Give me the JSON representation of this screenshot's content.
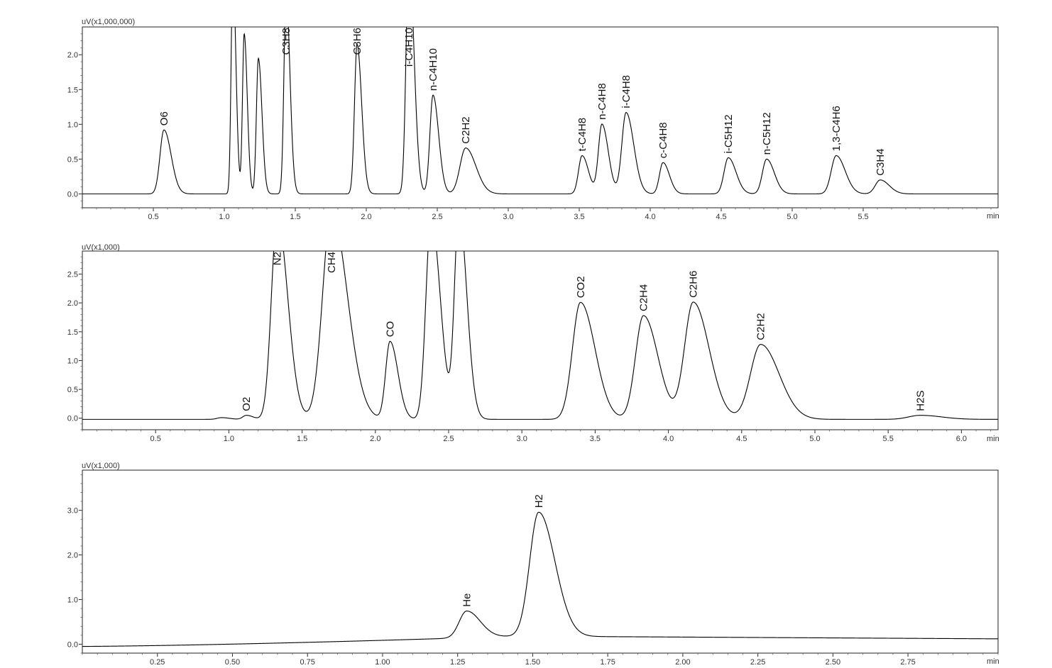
{
  "chart_data": [
    {
      "type": "line",
      "y_unit_label": "uV(x1,000,000)",
      "x_unit_label": "min",
      "xlim": [
        0.0,
        6.45
      ],
      "ylim": [
        -0.2,
        2.4
      ],
      "x_ticks": [
        "0.5",
        "1.0",
        "1.5",
        "2.0",
        "2.5",
        "3.0",
        "3.5",
        "4.0",
        "4.5",
        "5.0",
        "5.5"
      ],
      "x_tick_values": [
        0.5,
        1.0,
        1.5,
        2.0,
        2.5,
        3.0,
        3.5,
        4.0,
        4.5,
        5.0,
        5.5
      ],
      "y_ticks": [
        "0.0",
        "0.5",
        "1.0",
        "1.5",
        "2.0"
      ],
      "y_tick_values": [
        0.0,
        0.5,
        1.0,
        1.5,
        2.0
      ],
      "baseline": 0.0,
      "peaks": [
        {
          "label": "O6",
          "rt": 0.575,
          "height": 0.92,
          "width": 0.028
        },
        {
          "label": "",
          "rt": 1.06,
          "height": 3.2,
          "width": 0.012
        },
        {
          "label": "",
          "rt": 1.14,
          "height": 2.3,
          "width": 0.012
        },
        {
          "label": "",
          "rt": 1.24,
          "height": 1.95,
          "width": 0.014
        },
        {
          "label": "C3H8",
          "rt": 1.435,
          "height": 2.9,
          "width": 0.015
        },
        {
          "label": "C3H6",
          "rt": 1.935,
          "height": 2.15,
          "width": 0.018
        },
        {
          "label": "i-C4H10",
          "rt": 2.3,
          "height": 3.4,
          "width": 0.02
        },
        {
          "label": "n-C4H10",
          "rt": 2.47,
          "height": 1.42,
          "width": 0.022
        },
        {
          "label": "C2H2",
          "rt": 2.7,
          "height": 0.66,
          "width": 0.04
        },
        {
          "label": "t-C4H8",
          "rt": 3.52,
          "height": 0.55,
          "width": 0.025
        },
        {
          "label": "n-C4H8",
          "rt": 3.66,
          "height": 1.0,
          "width": 0.025
        },
        {
          "label": "i-C4H8",
          "rt": 3.83,
          "height": 1.17,
          "width": 0.03
        },
        {
          "label": "c-C4H8",
          "rt": 4.09,
          "height": 0.45,
          "width": 0.025
        },
        {
          "label": "i-C5H12",
          "rt": 4.55,
          "height": 0.52,
          "width": 0.03
        },
        {
          "label": "n-C5H12",
          "rt": 4.82,
          "height": 0.5,
          "width": 0.03
        },
        {
          "label": "1,3-C4H6",
          "rt": 5.31,
          "height": 0.55,
          "width": 0.035
        },
        {
          "label": "C3H4",
          "rt": 5.62,
          "height": 0.2,
          "width": 0.035
        }
      ]
    },
    {
      "type": "line",
      "y_unit_label": "uV(x1,000)",
      "x_unit_label": "min",
      "xlim": [
        0.0,
        6.25
      ],
      "ylim": [
        -0.2,
        2.9
      ],
      "x_ticks": [
        "0.5",
        "1.0",
        "1.5",
        "2.0",
        "2.5",
        "3.0",
        "3.5",
        "4.0",
        "4.5",
        "5.0",
        "5.5",
        "6.0"
      ],
      "x_tick_values": [
        0.5,
        1.0,
        1.5,
        2.0,
        2.5,
        3.0,
        3.5,
        4.0,
        4.5,
        5.0,
        5.5,
        6.0
      ],
      "y_ticks": [
        "0.0",
        "0.5",
        "1.0",
        "1.5",
        "2.0",
        "2.5"
      ],
      "y_tick_values": [
        0.0,
        0.5,
        1.0,
        1.5,
        2.0,
        2.5
      ],
      "baseline": -0.02,
      "peaks": [
        {
          "label": "",
          "rt": 0.95,
          "height": 0.03,
          "width": 0.03
        },
        {
          "label": "O2",
          "rt": 1.12,
          "height": 0.07,
          "width": 0.025
        },
        {
          "label": "N2",
          "rt": 1.33,
          "height": 3.5,
          "width": 0.04
        },
        {
          "label": "CH4",
          "rt": 1.7,
          "height": 3.6,
          "width": 0.06
        },
        {
          "label": "CO",
          "rt": 2.1,
          "height": 1.35,
          "width": 0.03
        },
        {
          "label": "",
          "rt": 2.38,
          "height": 3.5,
          "width": 0.035
        },
        {
          "label": "",
          "rt": 2.57,
          "height": 3.6,
          "width": 0.03
        },
        {
          "label": "CO2",
          "rt": 3.4,
          "height": 2.03,
          "width": 0.055
        },
        {
          "label": "C2H4",
          "rt": 3.83,
          "height": 1.8,
          "width": 0.055
        },
        {
          "label": "C2H6",
          "rt": 4.17,
          "height": 2.03,
          "width": 0.06
        },
        {
          "label": "C2H2",
          "rt": 4.63,
          "height": 1.3,
          "width": 0.07
        },
        {
          "label": "H2S",
          "rt": 5.72,
          "height": 0.07,
          "width": 0.08
        }
      ]
    },
    {
      "type": "line",
      "y_unit_label": "uV(x1,000)",
      "x_unit_label": "min",
      "xlim": [
        0.0,
        3.05
      ],
      "ylim": [
        -0.2,
        3.9
      ],
      "x_ticks": [
        "0.25",
        "0.50",
        "0.75",
        "1.00",
        "1.25",
        "1.50",
        "1.75",
        "2.00",
        "2.25",
        "2.50",
        "2.75"
      ],
      "x_tick_values": [
        0.25,
        0.5,
        0.75,
        1.0,
        1.25,
        1.5,
        1.75,
        2.0,
        2.25,
        2.5,
        2.75
      ],
      "y_ticks": [
        "0.0",
        "1.0",
        "2.0",
        "3.0"
      ],
      "y_tick_values": [
        0.0,
        1.0,
        2.0,
        3.0
      ],
      "baseline_start": -0.05,
      "baseline_peak": 0.18,
      "baseline_end": 0.12,
      "peaks": [
        {
          "label": "He",
          "rt": 1.28,
          "height": 0.6,
          "width": 0.025
        },
        {
          "label": "H2",
          "rt": 1.52,
          "height": 2.78,
          "width": 0.03
        }
      ]
    }
  ]
}
